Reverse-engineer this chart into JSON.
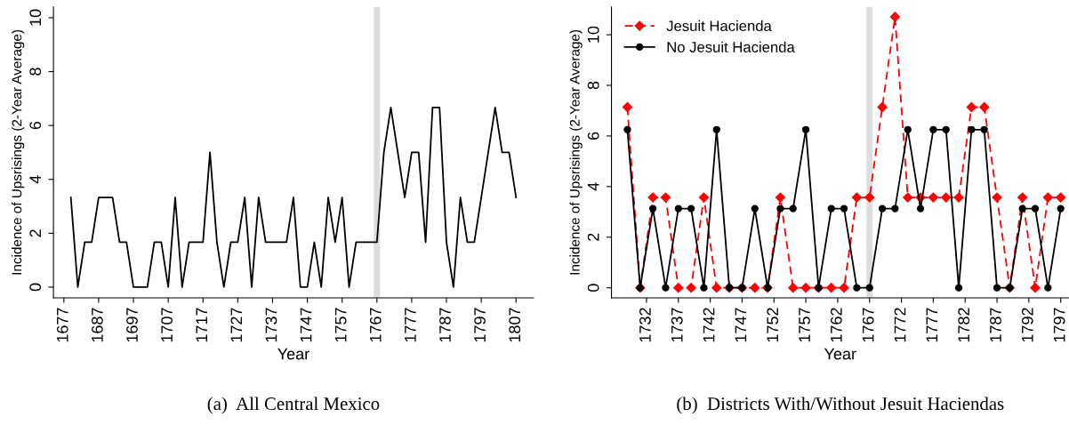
{
  "chart_data": [
    {
      "type": "line",
      "title": "(a)  All Central Mexico",
      "xlabel": "Year",
      "ylabel": "Incidence of Upsrisings (2-Year Average)",
      "x": [
        1679,
        1681,
        1683,
        1685,
        1687,
        1689,
        1691,
        1693,
        1695,
        1697,
        1699,
        1701,
        1703,
        1705,
        1707,
        1709,
        1711,
        1713,
        1715,
        1717,
        1719,
        1721,
        1723,
        1725,
        1727,
        1729,
        1731,
        1733,
        1735,
        1737,
        1739,
        1741,
        1743,
        1745,
        1747,
        1749,
        1751,
        1753,
        1755,
        1757,
        1759,
        1761,
        1763,
        1765,
        1767,
        1769,
        1771,
        1773,
        1775,
        1777,
        1779,
        1781,
        1783,
        1785,
        1787,
        1789,
        1791,
        1793,
        1795,
        1797,
        1799,
        1801,
        1803,
        1805,
        1807
      ],
      "series": [
        {
          "color": "#000000",
          "line_style": "solid",
          "values": [
            3.33,
            0,
            1.67,
            1.67,
            3.33,
            3.33,
            3.33,
            1.67,
            1.67,
            0,
            0,
            0,
            1.67,
            1.67,
            0,
            3.33,
            0,
            1.67,
            1.67,
            1.67,
            5,
            1.67,
            0,
            1.67,
            1.67,
            3.33,
            0,
            3.33,
            1.67,
            1.67,
            1.67,
            1.67,
            3.33,
            0,
            0,
            1.67,
            0,
            3.33,
            1.67,
            3.33,
            0,
            1.67,
            1.67,
            1.67,
            1.67,
            5,
            6.67,
            5,
            3.33,
            5,
            5,
            1.67,
            6.67,
            6.67,
            1.67,
            0,
            3.33,
            1.67,
            1.67,
            3.33,
            5,
            6.67,
            5,
            5,
            3.33
          ]
        }
      ],
      "xlim": [
        1674,
        1812
      ],
      "ylim": [
        -0.4,
        10.4
      ],
      "xticks": [
        1677,
        1687,
        1697,
        1707,
        1717,
        1727,
        1737,
        1747,
        1757,
        1767,
        1777,
        1787,
        1797,
        1807
      ],
      "yticks": [
        0,
        2,
        4,
        6,
        8,
        10
      ],
      "ref_lines": [
        {
          "axis": "x",
          "value": 1767,
          "label": null,
          "color": "#dddddd"
        }
      ]
    },
    {
      "type": "line",
      "title": "(b)  Districts With/Without Jesuit Haciendas",
      "xlabel": "Year",
      "ylabel": "Incidence of Upsrisings (2-Year Average)",
      "legend": "top left",
      "x": [
        1729,
        1731,
        1733,
        1735,
        1737,
        1739,
        1741,
        1743,
        1745,
        1747,
        1749,
        1751,
        1753,
        1755,
        1757,
        1759,
        1761,
        1763,
        1765,
        1767,
        1769,
        1771,
        1773,
        1775,
        1777,
        1779,
        1781,
        1783,
        1785,
        1787,
        1789,
        1791,
        1793,
        1795,
        1797
      ],
      "series": [
        {
          "name": "Jesuit Hacienda",
          "color": "#ff0000",
          "line_style": "dashed",
          "marker": "diamond",
          "values": [
            7.14,
            0,
            3.57,
            3.57,
            0,
            0,
            3.57,
            0,
            0,
            0,
            0,
            0,
            3.57,
            0,
            0,
            0,
            0,
            0,
            3.57,
            3.57,
            7.14,
            10.71,
            3.57,
            3.57,
            3.57,
            3.57,
            3.57,
            7.14,
            7.14,
            3.57,
            0,
            3.57,
            0,
            3.57,
            3.57
          ]
        },
        {
          "name": "No Jesuit Hacienda",
          "color": "#000000",
          "line_style": "solid",
          "marker": "circle",
          "values": [
            6.25,
            0,
            3.13,
            0,
            3.13,
            3.13,
            0,
            6.25,
            0,
            0,
            3.13,
            0,
            3.13,
            3.13,
            6.25,
            0,
            3.13,
            3.13,
            0,
            0,
            3.13,
            3.13,
            6.25,
            3.13,
            6.25,
            6.25,
            0,
            6.25,
            6.25,
            0,
            0,
            3.13,
            3.13,
            0,
            3.13
          ]
        }
      ],
      "xlim": [
        1726.5,
        1798.3
      ],
      "ylim": [
        -0.4,
        11.1
      ],
      "xticks": [
        1732,
        1737,
        1742,
        1747,
        1752,
        1757,
        1762,
        1767,
        1772,
        1777,
        1782,
        1787,
        1792,
        1797
      ],
      "yticks": [
        0,
        2,
        4,
        6,
        8,
        10
      ],
      "ref_lines": [
        {
          "axis": "x",
          "value": 1767,
          "label": null,
          "color": "#dddddd"
        }
      ]
    }
  ]
}
